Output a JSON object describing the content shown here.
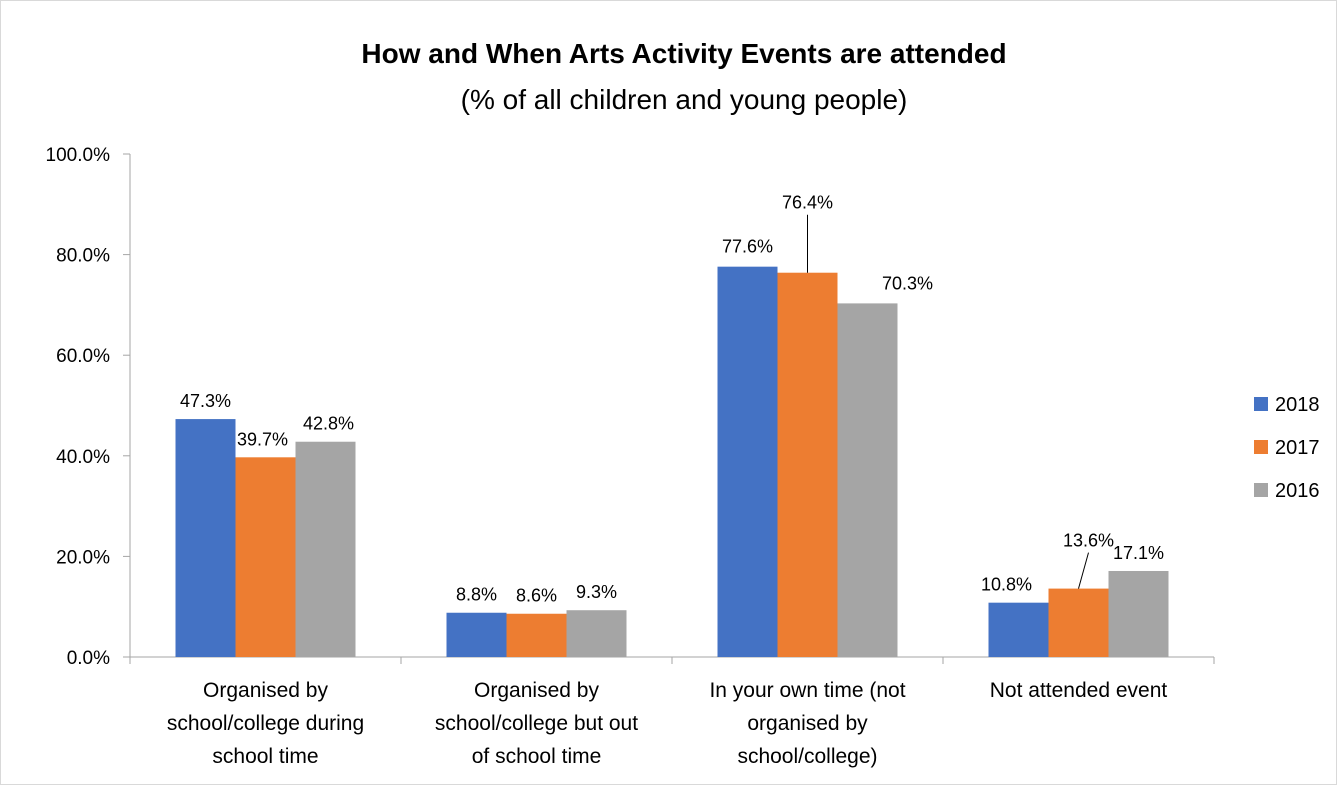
{
  "chart_data": {
    "type": "bar",
    "title": "How and When Arts Activity Events are attended",
    "subtitle": "(% of all children and young people)",
    "categories": [
      [
        "Organised by",
        "school/college during",
        "school time"
      ],
      [
        "Organised by",
        "school/college but out",
        "of school time"
      ],
      [
        "In your own time (not",
        "organised by",
        "school/college)"
      ],
      [
        "Not attended event"
      ]
    ],
    "series": [
      {
        "name": "2018",
        "color": "#4472c4",
        "values": [
          47.3,
          8.8,
          77.6,
          10.8
        ],
        "labels": [
          "47.3%",
          "8.8%",
          "77.6%",
          "10.8%"
        ]
      },
      {
        "name": "2017",
        "color": "#ed7d31",
        "values": [
          39.7,
          8.6,
          76.4,
          13.6
        ],
        "labels": [
          "39.7%",
          "8.6%",
          "76.4%",
          "13.6%"
        ]
      },
      {
        "name": "2016",
        "color": "#a5a5a5",
        "values": [
          42.8,
          9.3,
          70.3,
          17.1
        ],
        "labels": [
          "42.8%",
          "9.3%",
          "70.3%",
          "17.1%"
        ]
      }
    ],
    "ylim": [
      0,
      100
    ],
    "yticks": [
      "0.0%",
      "20.0%",
      "40.0%",
      "60.0%",
      "80.0%",
      "100.0%"
    ],
    "ytick_values": [
      0,
      20,
      40,
      60,
      80,
      100
    ],
    "grid": false,
    "legend_position": "right"
  }
}
